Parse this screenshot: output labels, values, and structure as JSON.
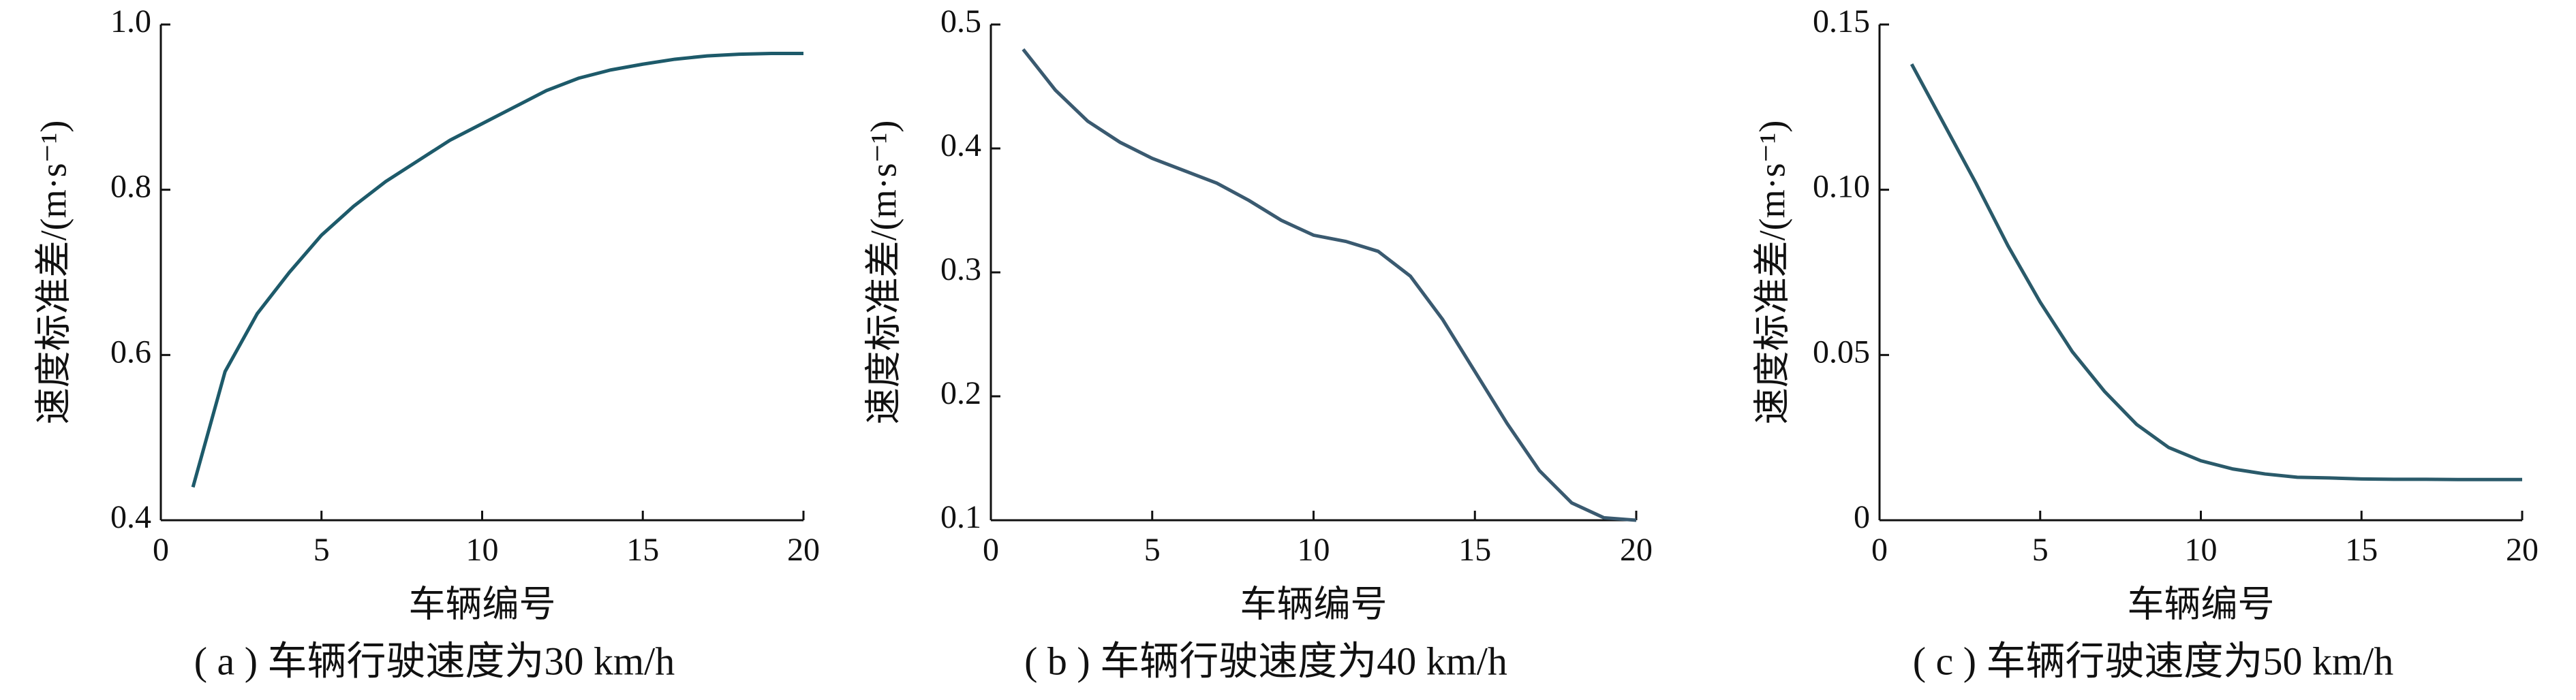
{
  "chart_data": [
    {
      "type": "line",
      "caption": "( a ) 车辆行驶速度为30 km/h",
      "xlabel": "车辆编号",
      "ylabel": "速度标准差/(m·s⁻¹)",
      "x": [
        1,
        2,
        3,
        4,
        5,
        6,
        7,
        8,
        9,
        10,
        11,
        12,
        13,
        14,
        15,
        16,
        17,
        18,
        19,
        20
      ],
      "series": [
        {
          "color": "#1d5a6a",
          "values": [
            0.44,
            0.58,
            0.65,
            0.7,
            0.745,
            0.78,
            0.81,
            0.835,
            0.86,
            0.88,
            0.9,
            0.92,
            0.935,
            0.945,
            0.952,
            0.958,
            0.962,
            0.964,
            0.965,
            0.965
          ]
        }
      ],
      "xlim": [
        0,
        20
      ],
      "xticks": [
        0,
        5,
        10,
        15,
        20
      ],
      "ylim": [
        0.4,
        1
      ],
      "yticks": [
        0.4,
        0.6,
        0.8,
        {
          "value": 1,
          "label": "1.0"
        }
      ]
    },
    {
      "type": "line",
      "caption": "( b ) 车辆行驶速度为40 km/h",
      "xlabel": "车辆编号",
      "ylabel": "速度标准差/(m·s⁻¹)",
      "x": [
        1,
        2,
        3,
        4,
        5,
        6,
        7,
        8,
        9,
        10,
        11,
        12,
        13,
        14,
        15,
        16,
        17,
        18,
        19,
        20
      ],
      "series": [
        {
          "color": "#3a5a70",
          "values": [
            0.48,
            0.447,
            0.422,
            0.405,
            0.392,
            0.382,
            0.372,
            0.358,
            0.342,
            0.33,
            0.325,
            0.317,
            0.297,
            0.262,
            0.22,
            0.178,
            0.14,
            0.114,
            0.102,
            0.1
          ]
        }
      ],
      "xlim": [
        0,
        20
      ],
      "xticks": [
        0,
        5,
        10,
        15,
        20
      ],
      "ylim": [
        0.1,
        0.5
      ],
      "yticks": [
        0.1,
        0.2,
        0.3,
        0.4,
        0.5
      ]
    },
    {
      "type": "line",
      "caption": "( c ) 车辆行驶速度为50 km/h",
      "xlabel": "车辆编号",
      "ylabel": "速度标准差/(m·s⁻¹)",
      "x": [
        1,
        2,
        3,
        4,
        5,
        6,
        7,
        8,
        9,
        10,
        11,
        12,
        13,
        14,
        15,
        16,
        17,
        18,
        19,
        20
      ],
      "series": [
        {
          "color": "#2a5a6a",
          "values": [
            0.138,
            0.12,
            0.102,
            0.083,
            0.066,
            0.051,
            0.039,
            0.029,
            0.022,
            0.018,
            0.0155,
            0.014,
            0.013,
            0.0128,
            0.0125,
            0.0124,
            0.0124,
            0.0123,
            0.0123,
            0.0123
          ]
        }
      ],
      "xlim": [
        0,
        20
      ],
      "xticks": [
        0,
        5,
        10,
        15,
        20
      ],
      "ylim": [
        0,
        0.15
      ],
      "yticks": [
        0,
        0.05,
        {
          "value": 0.1,
          "label": "0.10"
        },
        0.15
      ]
    }
  ]
}
